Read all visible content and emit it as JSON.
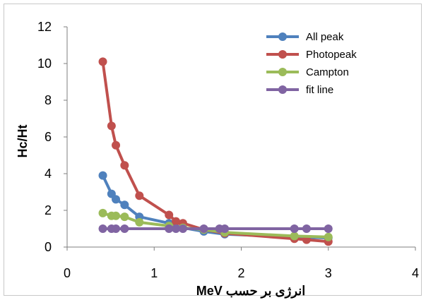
{
  "chart_data": {
    "type": "line",
    "title": "",
    "xlabel": "انرژی بر حسب MeV",
    "ylabel": "Hc/Ht",
    "xlim": [
      0,
      4
    ],
    "ylim": [
      0,
      12
    ],
    "xticks": [
      0,
      1,
      2,
      3,
      4
    ],
    "yticks": [
      0,
      2,
      4,
      6,
      8,
      10,
      12
    ],
    "grid": false,
    "legend_position": "top-right",
    "series": [
      {
        "name": "All peak",
        "color": "#4F81BD",
        "x": [
          0.41,
          0.51,
          0.56,
          0.66,
          0.83,
          1.17,
          1.33,
          1.57,
          1.81,
          2.61,
          3.0
        ],
        "y": [
          3.9,
          2.9,
          2.6,
          2.3,
          1.65,
          1.3,
          1.05,
          0.85,
          0.7,
          0.55,
          0.5
        ]
      },
      {
        "name": "Photopeak",
        "color": "#C0504D",
        "x": [
          0.41,
          0.51,
          0.56,
          0.66,
          0.83,
          1.17,
          1.25,
          1.33,
          1.57,
          1.81,
          2.61,
          2.75,
          3.0
        ],
        "y": [
          10.1,
          6.6,
          5.55,
          4.45,
          2.8,
          1.75,
          1.4,
          1.3,
          0.95,
          0.75,
          0.45,
          0.4,
          0.3
        ]
      },
      {
        "name": "Campton",
        "color": "#9BBB59",
        "x": [
          0.41,
          0.51,
          0.56,
          0.66,
          0.83,
          1.17,
          1.33,
          1.57,
          1.81,
          2.61,
          3.0
        ],
        "y": [
          1.85,
          1.7,
          1.7,
          1.65,
          1.35,
          1.15,
          1.05,
          0.95,
          0.8,
          0.6,
          0.55
        ]
      },
      {
        "name": "fit line",
        "color": "#8064A2",
        "x": [
          0.41,
          0.51,
          0.56,
          0.66,
          1.17,
          1.25,
          1.33,
          1.57,
          1.75,
          1.81,
          2.61,
          2.75,
          3.0
        ],
        "y": [
          1.0,
          1.0,
          1.0,
          1.0,
          1.0,
          1.0,
          1.0,
          1.0,
          1.0,
          1.0,
          1.0,
          1.0,
          1.0
        ]
      }
    ]
  }
}
